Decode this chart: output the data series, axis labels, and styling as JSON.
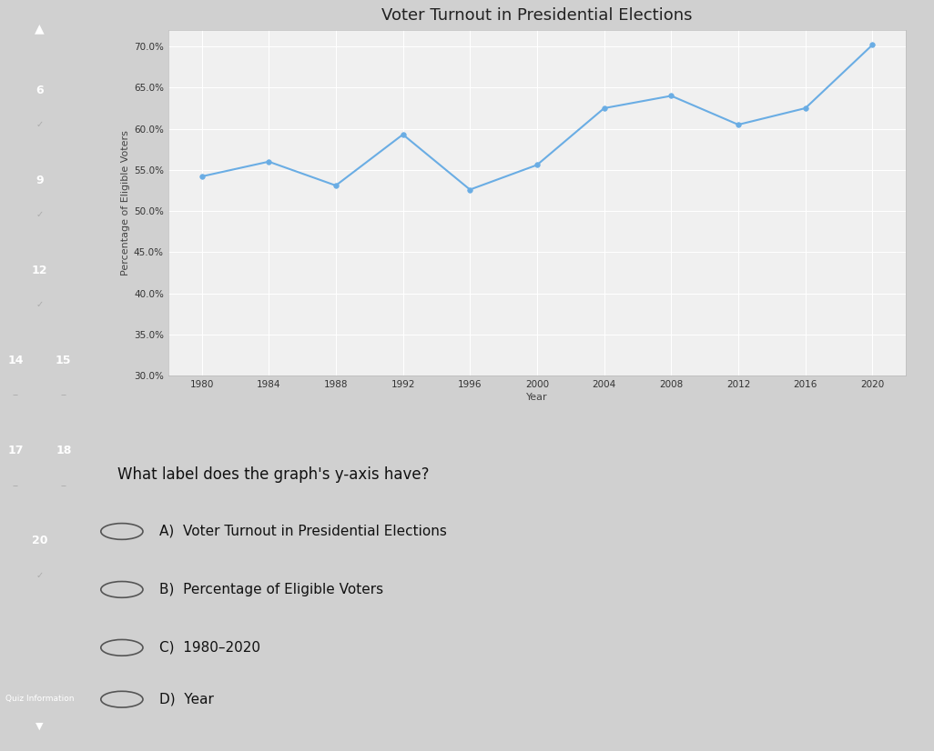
{
  "title": "Voter Turnout in Presidential Elections",
  "xlabel": "Year",
  "ylabel": "Percentage of Eligible Voters",
  "years": [
    1980,
    1984,
    1988,
    1992,
    1996,
    2000,
    2004,
    2008,
    2012,
    2016,
    2020
  ],
  "turnout": [
    54.2,
    56.0,
    53.1,
    59.3,
    52.6,
    55.6,
    62.5,
    64.0,
    60.5,
    62.5,
    70.2
  ],
  "ylim": [
    30.0,
    72.0
  ],
  "yticks": [
    30.0,
    35.0,
    40.0,
    45.0,
    50.0,
    55.0,
    60.0,
    65.0,
    70.0
  ],
  "line_color": "#6aade4",
  "marker_color": "#6aade4",
  "page_bg": "#d0d0d0",
  "sidebar_color": "#5a5a6e",
  "chart_bg": "#e8e8e8",
  "plot_bg": "#f0f0f0",
  "grid_color": "#ffffff",
  "title_fontsize": 13,
  "label_fontsize": 8,
  "tick_fontsize": 7.5,
  "question_text": "What label does the graph's y-axis have?",
  "answer_A": "A)  Voter Turnout in Presidential Elections",
  "answer_B": "B)  Percentage of Eligible Voters",
  "answer_C": "C)  1980–2020",
  "answer_D": "D)  Year",
  "sidebar_numbers": [
    "6",
    "9",
    "12",
    "14",
    "15",
    "17",
    "18",
    "20"
  ],
  "quiz_info": "Quiz Information"
}
